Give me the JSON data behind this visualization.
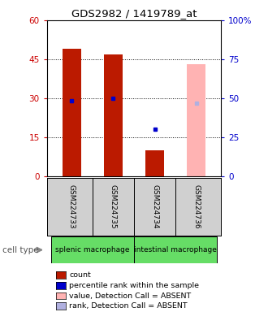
{
  "title": "GDS2982 / 1419789_at",
  "samples": [
    "GSM224733",
    "GSM224735",
    "GSM224734",
    "GSM224736"
  ],
  "bar_values": [
    49,
    47,
    10,
    0
  ],
  "bar_colors": [
    "#bb1a00",
    "#bb1a00",
    "#bb1a00",
    null
  ],
  "absent_bar_value": 43,
  "absent_bar_idx": 3,
  "absent_bar_color": "#ffb3b3",
  "percentile_rank": [
    29,
    30,
    18,
    null
  ],
  "percentile_rank_color": "#0000cc",
  "percentile_rank_absent": [
    null,
    null,
    null,
    28
  ],
  "percentile_rank_absent_color": "#b0b0e0",
  "ylim_left": [
    0,
    60
  ],
  "ylim_right": [
    0,
    100
  ],
  "yticks_left": [
    0,
    15,
    30,
    45,
    60
  ],
  "yticks_right": [
    0,
    25,
    50,
    75,
    100
  ],
  "ytick_labels_left": [
    "0",
    "15",
    "30",
    "45",
    "60"
  ],
  "ytick_labels_right": [
    "0",
    "25",
    "50",
    "75",
    "100%"
  ],
  "bar_width": 0.45,
  "left_tick_color": "#cc0000",
  "right_tick_color": "#0000cc",
  "plot_bg_color": "#ffffff",
  "cell_type_splenic_color": "#66dd66",
  "cell_type_intestinal_color": "#66dd66",
  "sample_box_color": "#d0d0d0",
  "legend_items": [
    {
      "color": "#bb1a00",
      "label": "count"
    },
    {
      "color": "#0000cc",
      "label": "percentile rank within the sample"
    },
    {
      "color": "#ffb3b3",
      "label": "value, Detection Call = ABSENT"
    },
    {
      "color": "#b0b0e0",
      "label": "rank, Detection Call = ABSENT"
    }
  ]
}
